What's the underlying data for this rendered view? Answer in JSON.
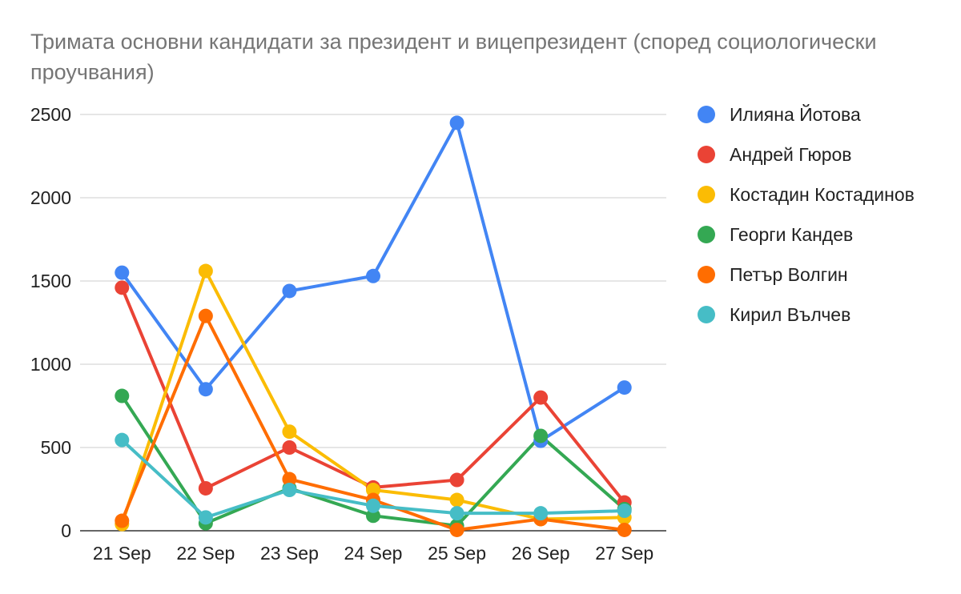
{
  "chart_data": {
    "type": "line",
    "title": "Тримата основни кандидати за президент и вицепрезидент (според социологически проучвания)",
    "xlabel": "",
    "ylabel": "",
    "categories": [
      "21 Sep",
      "22 Sep",
      "23 Sep",
      "24 Sep",
      "25 Sep",
      "26 Sep",
      "27 Sep"
    ],
    "ylim": [
      0,
      2500
    ],
    "yticks": [
      0,
      500,
      1000,
      1500,
      2000,
      2500
    ],
    "grid": true,
    "legend_position": "right",
    "series": [
      {
        "name": "Илияна Йотова",
        "color": "#4285F4",
        "values": [
          1550,
          850,
          1440,
          1530,
          2450,
          540,
          860
        ]
      },
      {
        "name": "Андрей Гюров",
        "color": "#EA4335",
        "values": [
          1460,
          255,
          500,
          260,
          305,
          800,
          170
        ]
      },
      {
        "name": "Костадин Костадинов",
        "color": "#FBBC04",
        "values": [
          40,
          1560,
          595,
          245,
          185,
          70,
          80
        ]
      },
      {
        "name": "Георги Кандев",
        "color": "#34A853",
        "values": [
          810,
          45,
          255,
          90,
          30,
          570,
          130
        ]
      },
      {
        "name": "Петър Волгин",
        "color": "#FF6D01",
        "values": [
          60,
          1290,
          310,
          185,
          5,
          70,
          5
        ]
      },
      {
        "name": "Кирил Вълчев",
        "color": "#46BDC6",
        "values": [
          545,
          80,
          245,
          150,
          105,
          105,
          120
        ]
      }
    ]
  }
}
